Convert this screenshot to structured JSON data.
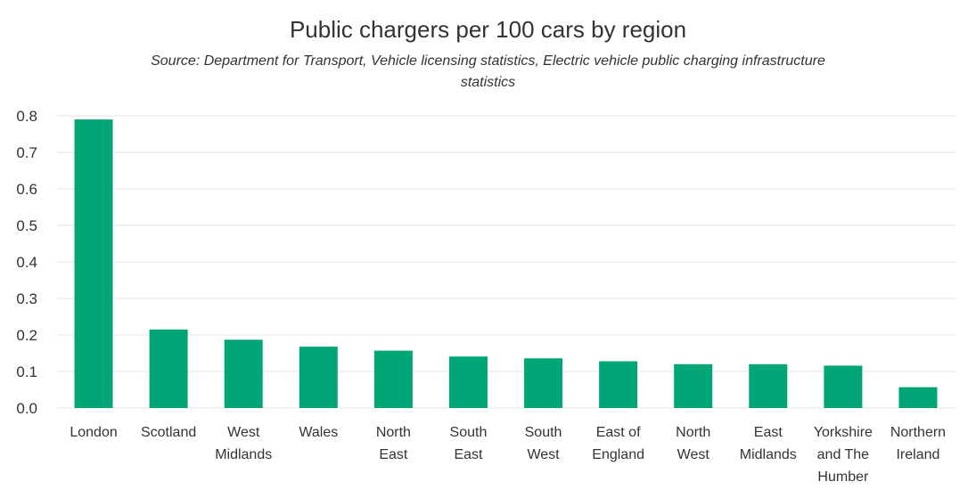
{
  "chart_data": {
    "type": "bar",
    "title": "Public chargers per 100 cars by region",
    "subtitle": "Source: Department for Transport, Vehicle licensing statistics, Electric vehicle public charging infrastructure statistics",
    "categories": [
      [
        "London"
      ],
      [
        "Scotland"
      ],
      [
        "West",
        "Midlands"
      ],
      [
        "Wales"
      ],
      [
        "North",
        "East"
      ],
      [
        "South",
        "East"
      ],
      [
        "South",
        "West"
      ],
      [
        "East of",
        "England"
      ],
      [
        "North",
        "West"
      ],
      [
        "East",
        "Midlands"
      ],
      [
        "Yorkshire",
        "and The",
        "Humber"
      ],
      [
        "Northern",
        "Ireland"
      ]
    ],
    "values": [
      0.79,
      0.215,
      0.187,
      0.168,
      0.157,
      0.141,
      0.136,
      0.128,
      0.12,
      0.12,
      0.116,
      0.057
    ],
    "ylim": [
      0,
      0.8
    ],
    "yticks": [
      "0.0",
      "0.1",
      "0.2",
      "0.3",
      "0.4",
      "0.5",
      "0.6",
      "0.7",
      "0.8"
    ],
    "grid": true,
    "bar_color": "#00a676",
    "grid_color": "#e6e6e6"
  }
}
